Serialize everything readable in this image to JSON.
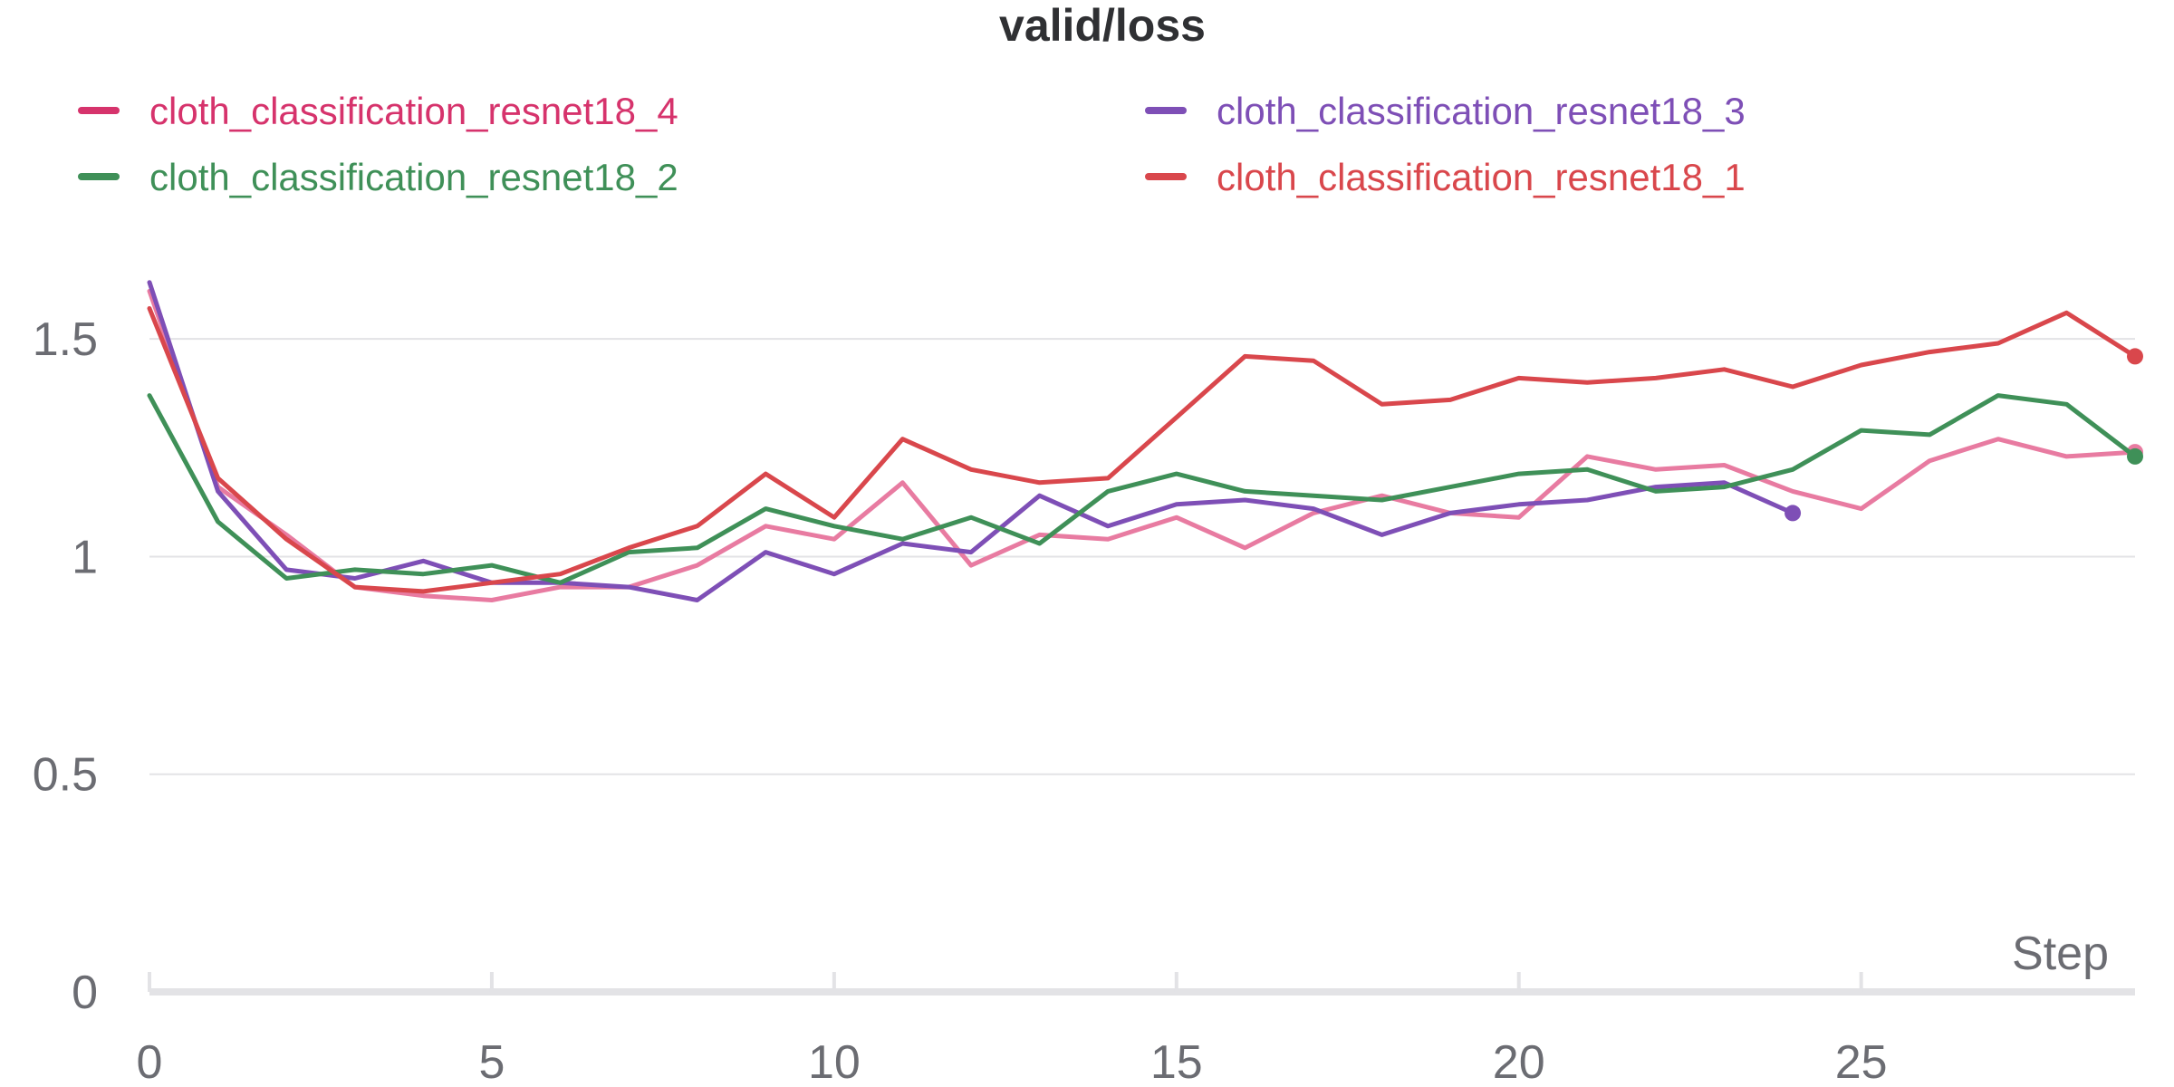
{
  "chart_data": {
    "type": "line",
    "title": "valid/loss",
    "xlabel": "Step",
    "ylabel": "",
    "xlim": [
      0,
      29
    ],
    "ylim": [
      0,
      1.8
    ],
    "x_ticks": [
      0,
      5,
      10,
      15,
      20,
      25
    ],
    "y_ticks": [
      0,
      0.5,
      1,
      1.5
    ],
    "y_tick_labels": [
      "0",
      "0.5",
      "1",
      "1.5"
    ],
    "grid": true,
    "legend_position": "top",
    "series": [
      {
        "name": "cloth_classification_resnet18_4",
        "color": "#e0426f",
        "label_color": "#d6336c",
        "line_color": "#e87ba1",
        "x": [
          0,
          1,
          2,
          3,
          4,
          5,
          6,
          7,
          8,
          9,
          10,
          11,
          12,
          13,
          14,
          15,
          16,
          17,
          18,
          19,
          20,
          21,
          22,
          23,
          24,
          25,
          26,
          27,
          28,
          29
        ],
        "values": [
          1.61,
          1.16,
          1.05,
          0.93,
          0.91,
          0.9,
          0.93,
          0.93,
          0.98,
          1.07,
          1.04,
          1.17,
          0.98,
          1.05,
          1.04,
          1.09,
          1.02,
          1.1,
          1.14,
          1.1,
          1.09,
          1.23,
          1.2,
          1.21,
          1.15,
          1.11,
          1.22,
          1.27,
          1.23,
          1.24
        ]
      },
      {
        "name": "cloth_classification_resnet18_3",
        "color": "#7e4fb6",
        "label_color": "#7e4fb6",
        "line_color": "#7e4fb6",
        "x": [
          0,
          1,
          2,
          3,
          4,
          5,
          6,
          7,
          8,
          9,
          10,
          11,
          12,
          13,
          14,
          15,
          16,
          17,
          18,
          19,
          20,
          21,
          22,
          23,
          24
        ],
        "values": [
          1.63,
          1.15,
          0.97,
          0.95,
          0.99,
          0.94,
          0.94,
          0.93,
          0.9,
          1.01,
          0.96,
          1.03,
          1.01,
          1.14,
          1.07,
          1.12,
          1.13,
          1.11,
          1.05,
          1.1,
          1.12,
          1.13,
          1.16,
          1.17,
          1.1
        ]
      },
      {
        "name": "cloth_classification_resnet18_2",
        "color": "#3f9058",
        "label_color": "#3f9058",
        "line_color": "#3f9058",
        "x": [
          0,
          1,
          2,
          3,
          4,
          5,
          6,
          7,
          8,
          9,
          10,
          11,
          12,
          13,
          14,
          15,
          16,
          17,
          18,
          19,
          20,
          21,
          22,
          23,
          24,
          25,
          26,
          27,
          28,
          29
        ],
        "values": [
          1.37,
          1.08,
          0.95,
          0.97,
          0.96,
          0.98,
          0.94,
          1.01,
          1.02,
          1.11,
          1.07,
          1.04,
          1.09,
          1.03,
          1.15,
          1.19,
          1.15,
          1.14,
          1.13,
          1.16,
          1.19,
          1.2,
          1.15,
          1.16,
          1.2,
          1.29,
          1.28,
          1.37,
          1.35,
          1.23
        ]
      },
      {
        "name": "cloth_classification_resnet18_1",
        "color": "#d9474c",
        "label_color": "#d9474c",
        "line_color": "#d9474c",
        "x": [
          0,
          1,
          2,
          3,
          4,
          5,
          6,
          7,
          8,
          9,
          10,
          11,
          12,
          13,
          14,
          15,
          16,
          17,
          18,
          19,
          20,
          21,
          22,
          23,
          24,
          25,
          26,
          27,
          28,
          29
        ],
        "values": [
          1.57,
          1.18,
          1.04,
          0.93,
          0.92,
          0.94,
          0.96,
          1.02,
          1.07,
          1.19,
          1.09,
          1.27,
          1.2,
          1.17,
          1.18,
          1.32,
          1.46,
          1.45,
          1.35,
          1.36,
          1.41,
          1.4,
          1.41,
          1.43,
          1.39,
          1.44,
          1.47,
          1.49,
          1.56,
          1.46
        ]
      }
    ]
  }
}
